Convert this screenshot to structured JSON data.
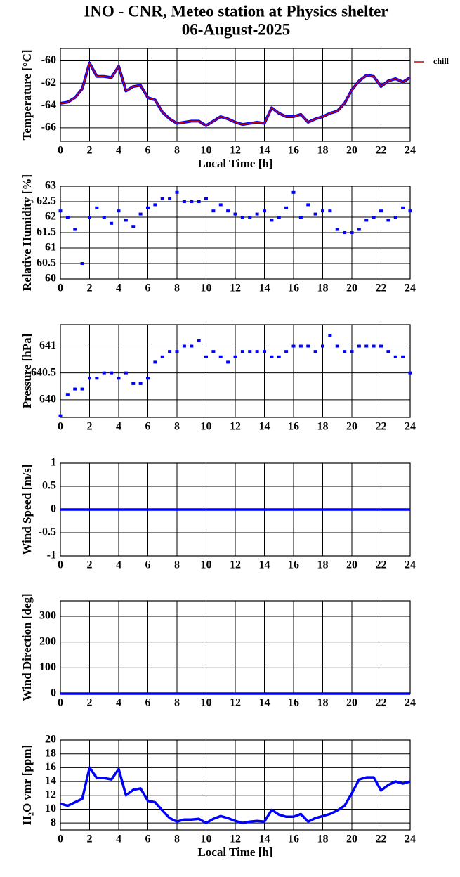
{
  "header": {
    "title": "INO - CNR, Meteo station at Physics shelter",
    "subtitle": "06-August-2025"
  },
  "chart_data": [
    {
      "type": "line",
      "ylabel": "Temperature [°C]",
      "xlabel": "Local Time [h]",
      "xlim": [
        0,
        24
      ],
      "xticks": [
        0,
        2,
        4,
        6,
        8,
        10,
        12,
        14,
        16,
        18,
        20,
        22,
        24
      ],
      "ylim": [
        -67.2,
        -58.9
      ],
      "yticks": [
        -66,
        -64,
        -62,
        -60
      ],
      "grid": true,
      "legend": "outside-right",
      "x": [
        0,
        0.5,
        1,
        1.5,
        2,
        2.5,
        3,
        3.5,
        4,
        4.5,
        5,
        5.5,
        6,
        6.5,
        7,
        7.5,
        8,
        8.5,
        9,
        9.5,
        10,
        10.5,
        11,
        11.5,
        12,
        12.5,
        13,
        13.5,
        14,
        14.5,
        15,
        15.5,
        16,
        16.5,
        17,
        17.5,
        18,
        18.5,
        19,
        19.5,
        20,
        20.5,
        21,
        21.5,
        22,
        22.5,
        23,
        23.5,
        24
      ],
      "series": [
        {
          "name": "chill",
          "color": "#cc0000",
          "values": [
            -63.8,
            -63.7,
            -63.3,
            -62.5,
            -60.2,
            -61.4,
            -61.4,
            -61.5,
            -60.5,
            -62.7,
            -62.3,
            -62.2,
            -63.3,
            -63.5,
            -64.6,
            -65.2,
            -65.6,
            -65.5,
            -65.4,
            -65.4,
            -65.8,
            -65.4,
            -65.0,
            -65.2,
            -65.5,
            -65.7,
            -65.6,
            -65.5,
            -65.6,
            -64.2,
            -64.7,
            -65.0,
            -65.0,
            -64.8,
            -65.5,
            -65.2,
            -65.0,
            -64.7,
            -64.5,
            -63.8,
            -62.6,
            -61.8,
            -61.3,
            -61.4,
            -62.3,
            -61.8,
            -61.6,
            -61.9,
            -61.5
          ]
        }
      ]
    },
    {
      "type": "scatter",
      "ylabel": "Relative Humidity [%]",
      "xlim": [
        0,
        24
      ],
      "xticks": [
        0,
        2,
        4,
        6,
        8,
        10,
        12,
        14,
        16,
        18,
        20,
        22,
        24
      ],
      "ylim": [
        60,
        63
      ],
      "yticks": [
        60,
        60.5,
        61,
        61.5,
        62,
        62.5,
        63
      ],
      "grid": true,
      "x": [
        0,
        0.5,
        1,
        1.5,
        2,
        2.5,
        3,
        3.5,
        4,
        4.5,
        5,
        5.5,
        6,
        6.5,
        7,
        7.5,
        8,
        8.5,
        9,
        9.5,
        10,
        10.5,
        11,
        11.5,
        12,
        12.5,
        13,
        13.5,
        14,
        14.5,
        15,
        15.5,
        16,
        16.5,
        17,
        17.5,
        18,
        18.5,
        19,
        19.5,
        20,
        20.5,
        21,
        21.5,
        22,
        22.5,
        23,
        23.5,
        24
      ],
      "series": [
        {
          "color": "#0000ff",
          "values": [
            62.2,
            62.0,
            61.6,
            60.5,
            62.0,
            62.3,
            62.0,
            61.8,
            62.2,
            61.9,
            61.7,
            62.1,
            62.3,
            62.4,
            62.6,
            62.6,
            62.8,
            62.5,
            62.5,
            62.5,
            62.6,
            62.2,
            62.4,
            62.2,
            62.1,
            62.0,
            62.0,
            62.1,
            62.2,
            61.9,
            62.0,
            62.3,
            62.8,
            62.0,
            62.4,
            62.1,
            62.2,
            62.2,
            61.6,
            61.5,
            61.5,
            61.6,
            61.9,
            62.0,
            62.2,
            61.9,
            62.0,
            62.3,
            62.2
          ]
        }
      ]
    },
    {
      "type": "scatter",
      "ylabel": "Pressure [hPa]",
      "xlim": [
        0,
        24
      ],
      "xticks": [
        0,
        2,
        4,
        6,
        8,
        10,
        12,
        14,
        16,
        18,
        20,
        22,
        24
      ],
      "ylim": [
        639.67,
        641.4
      ],
      "yticks": [
        640,
        640.5,
        641
      ],
      "grid": true,
      "x": [
        0,
        0.5,
        1,
        1.5,
        2,
        2.5,
        3,
        3.5,
        4,
        4.5,
        5,
        5.5,
        6,
        6.5,
        7,
        7.5,
        8,
        8.5,
        9,
        9.5,
        10,
        10.5,
        11,
        11.5,
        12,
        12.5,
        13,
        13.5,
        14,
        14.5,
        15,
        15.5,
        16,
        16.5,
        17,
        17.5,
        18,
        18.5,
        19,
        19.5,
        20,
        20.5,
        21,
        21.5,
        22,
        22.5,
        23,
        23.5,
        24
      ],
      "series": [
        {
          "color": "#0000ff",
          "values": [
            639.7,
            640.1,
            640.2,
            640.2,
            640.4,
            640.4,
            640.5,
            640.5,
            640.4,
            640.5,
            640.3,
            640.3,
            640.4,
            640.7,
            640.8,
            640.9,
            640.9,
            641.0,
            641.0,
            641.1,
            640.8,
            640.9,
            640.8,
            640.7,
            640.8,
            640.9,
            640.9,
            640.9,
            640.9,
            640.8,
            640.8,
            640.9,
            641.0,
            641.0,
            641.0,
            640.9,
            641.0,
            641.2,
            641.0,
            640.9,
            640.9,
            641.0,
            641.0,
            641.0,
            641.0,
            640.9,
            640.8,
            640.8,
            640.5
          ]
        }
      ]
    },
    {
      "type": "line",
      "ylabel": "Wind Speed [m/s]",
      "xlim": [
        0,
        24
      ],
      "xticks": [
        0,
        2,
        4,
        6,
        8,
        10,
        12,
        14,
        16,
        18,
        20,
        22,
        24
      ],
      "ylim": [
        -1,
        1
      ],
      "yticks": [
        -1,
        -0.5,
        0,
        0.5,
        1
      ],
      "grid": true,
      "x": [
        0,
        24
      ],
      "series": [
        {
          "color": "#0000ff",
          "values": [
            0,
            0
          ]
        }
      ]
    },
    {
      "type": "line",
      "ylabel": "Wind Direction [deg]",
      "xlim": [
        0,
        24
      ],
      "xticks": [
        0,
        2,
        4,
        6,
        8,
        10,
        12,
        14,
        16,
        18,
        20,
        22,
        24
      ],
      "ylim": [
        0,
        360
      ],
      "yticks": [
        0,
        100,
        200,
        300
      ],
      "grid": true,
      "x": [
        0,
        24
      ],
      "series": [
        {
          "color": "#0000ff",
          "values": [
            0,
            0
          ]
        }
      ]
    },
    {
      "type": "line",
      "ylabel": "H₂O vmr [ppm]",
      "xlabel": "Local Time [h]",
      "xlim": [
        0,
        24
      ],
      "xticks": [
        0,
        2,
        4,
        6,
        8,
        10,
        12,
        14,
        16,
        18,
        20,
        22,
        24
      ],
      "ylim": [
        7,
        20
      ],
      "yticks": [
        8,
        10,
        12,
        14,
        16,
        18,
        20
      ],
      "grid": true,
      "x": [
        0,
        0.5,
        1,
        1.5,
        2,
        2.5,
        3,
        3.5,
        4,
        4.5,
        5,
        5.5,
        6,
        6.5,
        7,
        7.5,
        8,
        8.5,
        9,
        9.5,
        10,
        10.5,
        11,
        11.5,
        12,
        12.5,
        13,
        13.5,
        14,
        14.5,
        15,
        15.5,
        16,
        16.5,
        17,
        17.5,
        18,
        18.5,
        19,
        19.5,
        20,
        20.5,
        21,
        21.5,
        22,
        22.5,
        23,
        23.5,
        24
      ],
      "series": [
        {
          "color": "#0000ff",
          "values": [
            10.8,
            10.5,
            11.0,
            11.5,
            16.0,
            14.5,
            14.5,
            14.3,
            15.8,
            12.0,
            12.8,
            13.0,
            11.2,
            11.0,
            9.8,
            8.7,
            8.2,
            8.5,
            8.5,
            8.6,
            8.0,
            8.6,
            9.0,
            8.7,
            8.3,
            8.0,
            8.2,
            8.3,
            8.2,
            9.9,
            9.2,
            8.9,
            8.9,
            9.3,
            8.2,
            8.7,
            9.0,
            9.3,
            9.8,
            10.5,
            12.3,
            14.3,
            14.6,
            14.6,
            12.7,
            13.5,
            14.0,
            13.7,
            14.0
          ]
        }
      ]
    }
  ]
}
